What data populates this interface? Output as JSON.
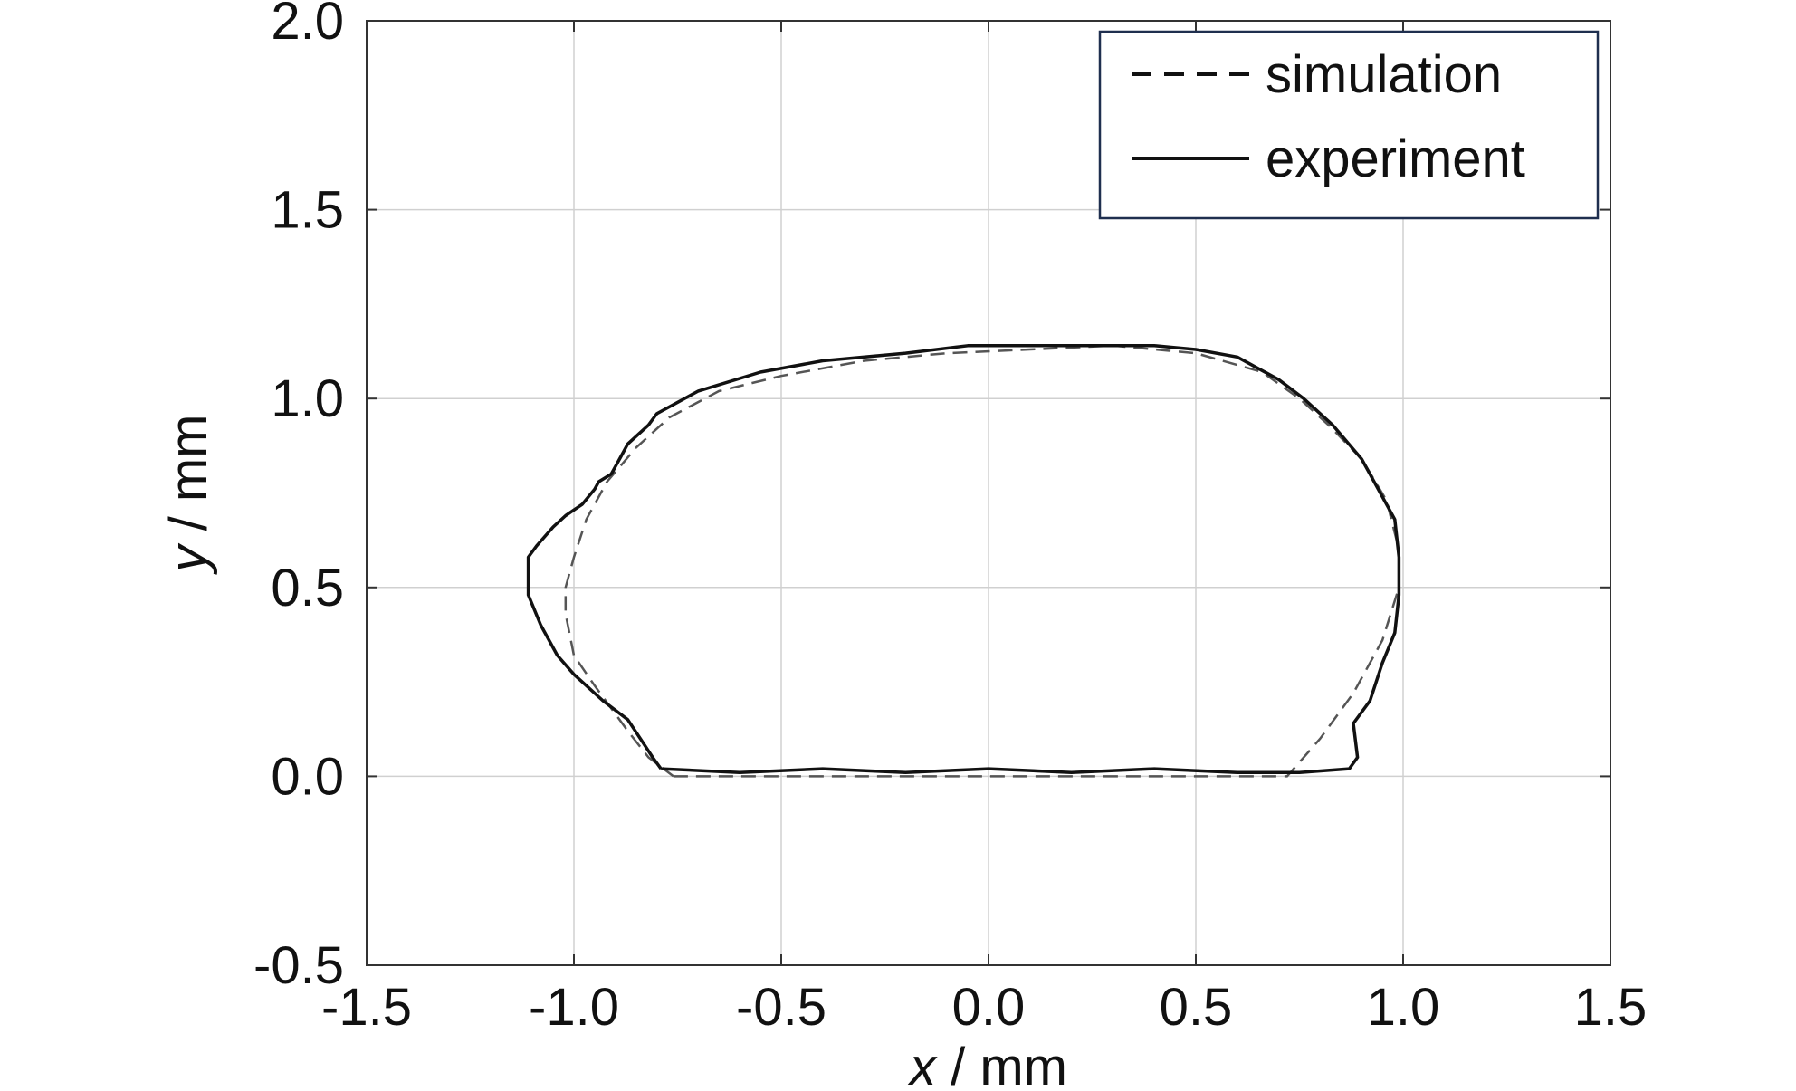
{
  "chart_data": {
    "type": "line",
    "xlabel": {
      "var": "x",
      "unit": " / mm"
    },
    "ylabel": {
      "var": "y",
      "unit": " / mm"
    },
    "xlim": [
      -1.5,
      1.5
    ],
    "ylim": [
      -0.5,
      2.0
    ],
    "xticks": [
      "-1.5",
      "-1.0",
      "-0.5",
      "0.0",
      "0.5",
      "1.0",
      "1.5"
    ],
    "yticks": [
      "-0.5",
      "0.0",
      "0.5",
      "1.0",
      "1.5",
      "2.0"
    ],
    "grid": true,
    "legend": "top-right",
    "series": [
      {
        "name": "simulation",
        "style": "dashed",
        "color": "#555555",
        "x": [
          -0.76,
          0.0,
          0.72,
          0.8,
          0.88,
          0.95,
          0.99,
          0.99,
          0.96,
          0.9,
          0.82,
          0.75,
          0.66,
          0.5,
          0.3,
          0.1,
          -0.1,
          -0.3,
          -0.5,
          -0.65,
          -0.77,
          -0.85,
          -0.92,
          -0.97,
          -1.0,
          -1.02,
          -1.02,
          -1.0,
          -0.95,
          -0.87,
          -0.82,
          -0.76
        ],
        "y": [
          0.0,
          0.0,
          0.0,
          0.1,
          0.22,
          0.36,
          0.5,
          0.6,
          0.73,
          0.84,
          0.93,
          1.0,
          1.07,
          1.12,
          1.14,
          1.13,
          1.12,
          1.1,
          1.06,
          1.02,
          0.95,
          0.87,
          0.78,
          0.68,
          0.58,
          0.5,
          0.43,
          0.32,
          0.24,
          0.12,
          0.05,
          0.0
        ]
      },
      {
        "name": "experiment",
        "style": "solid",
        "color": "#111111",
        "x": [
          -0.79,
          -0.6,
          -0.4,
          -0.2,
          0.0,
          0.2,
          0.4,
          0.6,
          0.75,
          0.87,
          0.89,
          0.88,
          0.92,
          0.95,
          0.98,
          0.99,
          0.99,
          0.98,
          0.95,
          0.9,
          0.83,
          0.76,
          0.7,
          0.6,
          0.5,
          0.4,
          0.2,
          0.0,
          -0.05,
          -0.2,
          -0.4,
          -0.55,
          -0.7,
          -0.8,
          -0.82,
          -0.87,
          -0.89,
          -0.91,
          -0.94,
          -0.95,
          -0.98,
          -1.02,
          -1.05,
          -1.09,
          -1.11,
          -1.11,
          -1.08,
          -1.04,
          -1.0,
          -0.93,
          -0.87,
          -0.84,
          -0.81,
          -0.79
        ],
        "y": [
          0.02,
          0.01,
          0.02,
          0.01,
          0.02,
          0.01,
          0.02,
          0.01,
          0.01,
          0.02,
          0.05,
          0.14,
          0.2,
          0.3,
          0.38,
          0.48,
          0.58,
          0.68,
          0.74,
          0.84,
          0.93,
          1.0,
          1.05,
          1.11,
          1.13,
          1.14,
          1.14,
          1.14,
          1.14,
          1.12,
          1.1,
          1.07,
          1.02,
          0.96,
          0.93,
          0.88,
          0.84,
          0.8,
          0.78,
          0.76,
          0.72,
          0.69,
          0.66,
          0.61,
          0.58,
          0.48,
          0.4,
          0.32,
          0.27,
          0.2,
          0.15,
          0.1,
          0.05,
          0.02
        ]
      }
    ]
  }
}
